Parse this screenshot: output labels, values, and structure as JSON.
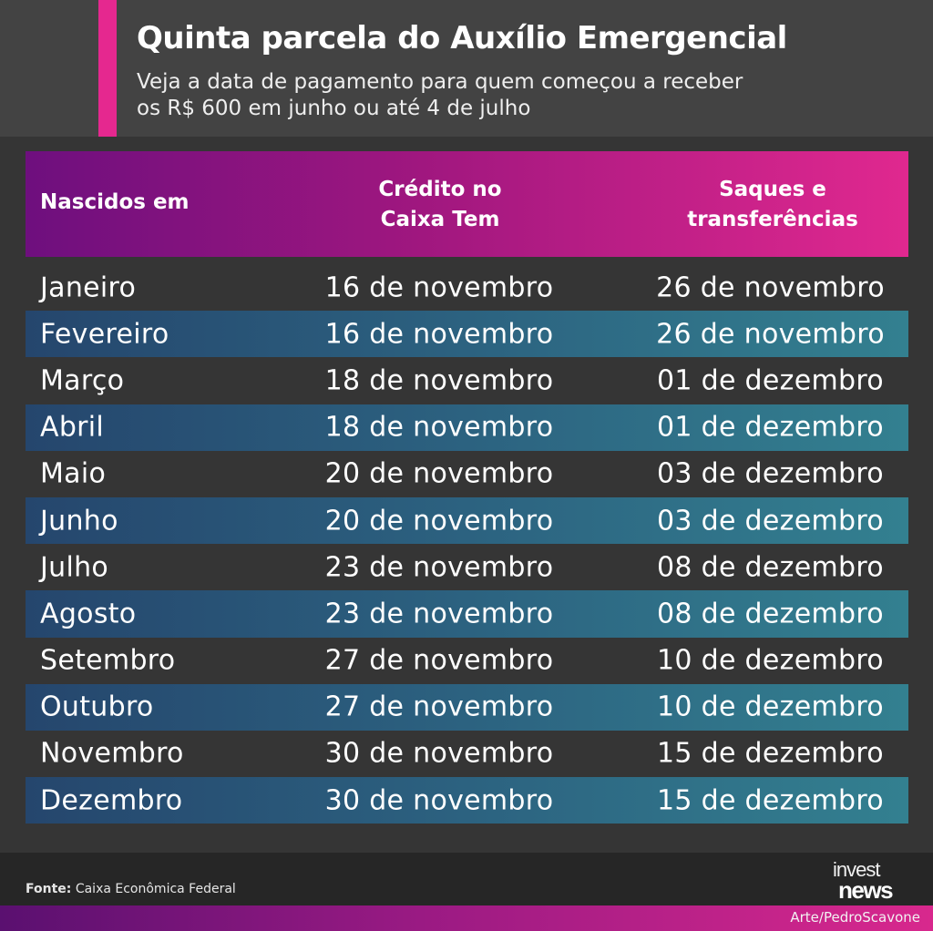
{
  "header": {
    "title": "Quinta parcela do Auxílio Emergencial",
    "subtitle_line1": "Veja a data de pagamento para quem começou a receber",
    "subtitle_line2": "os R$ 600 em junho ou até 4 de julho"
  },
  "colors": {
    "accent": "#e5288f",
    "background": "#353535",
    "header_bg": "#434343",
    "row_alt": "#2c6280"
  },
  "chart_data": {
    "type": "table",
    "columns": [
      {
        "key": "month",
        "label_line1": "Nascidos em",
        "label_line2": ""
      },
      {
        "key": "credit",
        "label_line1": "Crédito no",
        "label_line2": "Caixa Tem"
      },
      {
        "key": "withdraw",
        "label_line1": "Saques e",
        "label_line2": "transferências"
      }
    ],
    "rows": [
      {
        "month": "Janeiro",
        "credit": "16 de novembro",
        "withdraw": "26 de novembro"
      },
      {
        "month": "Fevereiro",
        "credit": "16 de novembro",
        "withdraw": "26 de novembro"
      },
      {
        "month": "Março",
        "credit": "18 de novembro",
        "withdraw": "01 de dezembro"
      },
      {
        "month": "Abril",
        "credit": "18 de novembro",
        "withdraw": "01 de dezembro"
      },
      {
        "month": "Maio",
        "credit": "20 de novembro",
        "withdraw": "03 de dezembro"
      },
      {
        "month": "Junho",
        "credit": "20 de novembro",
        "withdraw": "03 de dezembro"
      },
      {
        "month": "Julho",
        "credit": "23 de novembro",
        "withdraw": "08 de dezembro"
      },
      {
        "month": "Agosto",
        "credit": "23 de novembro",
        "withdraw": "08 de dezembro"
      },
      {
        "month": "Setembro",
        "credit": "27 de novembro",
        "withdraw": "10 de dezembro"
      },
      {
        "month": "Outubro",
        "credit": "27 de novembro",
        "withdraw": "10 de dezembro"
      },
      {
        "month": "Novembro",
        "credit": "30 de novembro",
        "withdraw": "15 de dezembro"
      },
      {
        "month": "Dezembro",
        "credit": "30 de novembro",
        "withdraw": "15 de dezembro"
      }
    ]
  },
  "footer": {
    "source_label": "Fonte:",
    "source_text": " Caixa Econômica Federal",
    "logo_top": "invest",
    "logo_bottom": "news",
    "credit": "Arte/PedroScavone"
  }
}
